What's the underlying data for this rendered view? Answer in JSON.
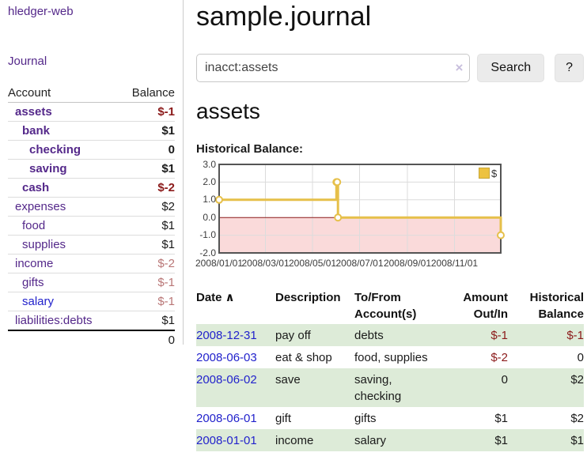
{
  "sidebar": {
    "brand": "hledger-web",
    "journal_link": "Journal",
    "accounts_table": {
      "headers": {
        "account": "Account",
        "balance": "Balance"
      },
      "rows": [
        {
          "name": "assets",
          "depth": 1,
          "bold": true,
          "balance": "$-1",
          "balance_style": "neg-strong"
        },
        {
          "name": "bank",
          "depth": 2,
          "bold": true,
          "balance": "$1",
          "balance_style": "pos"
        },
        {
          "name": "checking",
          "depth": 3,
          "bold": true,
          "balance": "0",
          "balance_style": "pos"
        },
        {
          "name": "saving",
          "depth": 3,
          "bold": true,
          "balance": "$1",
          "balance_style": "pos"
        },
        {
          "name": "cash",
          "depth": 2,
          "bold": true,
          "balance": "$-2",
          "balance_style": "neg-strong"
        },
        {
          "name": "expenses",
          "depth": 1,
          "bold": false,
          "balance": "$2",
          "balance_style": "pos"
        },
        {
          "name": "food",
          "depth": 2,
          "bold": false,
          "balance": "$1",
          "balance_style": "pos"
        },
        {
          "name": "supplies",
          "depth": 2,
          "bold": false,
          "balance": "$1",
          "balance_style": "pos"
        },
        {
          "name": "income",
          "depth": 1,
          "bold": false,
          "balance": "$-2",
          "balance_style": "neg-muted"
        },
        {
          "name": "gifts",
          "depth": 2,
          "bold": false,
          "balance": "$-1",
          "balance_style": "neg-muted"
        },
        {
          "name": "salary",
          "depth": 2,
          "bold": false,
          "link_style": "blue",
          "balance": "$-1",
          "balance_style": "neg-muted"
        },
        {
          "name": "liabilities:debts",
          "depth": 1,
          "bold": false,
          "balance": "$1",
          "balance_style": "pos"
        }
      ],
      "total": "0"
    }
  },
  "header": {
    "title": "sample.journal"
  },
  "search": {
    "value": "inacct:assets",
    "clear_icon": "×",
    "button_label": "Search",
    "help_label": "?"
  },
  "account_page": {
    "title": "assets",
    "chart_label": "Historical Balance:"
  },
  "chart_data": {
    "type": "line",
    "style": "step-after",
    "series": [
      {
        "name": "$",
        "points": [
          [
            "2008-01-01",
            1
          ],
          [
            "2008-06-01",
            2
          ],
          [
            "2008-06-02",
            2
          ],
          [
            "2008-06-03",
            0
          ],
          [
            "2008-12-31",
            -1
          ]
        ]
      }
    ],
    "x_range": [
      "2008-01-01",
      "2008-12-31"
    ],
    "x_ticks": [
      "2008/01/01",
      "2008/03/01",
      "2008/05/01",
      "2008/07/01",
      "2008/09/01",
      "2008/11/01"
    ],
    "y_ticks": [
      "3.0",
      "2.0",
      "1.0",
      "0.0",
      "-1.0",
      "-2.0"
    ],
    "ylim": [
      -2,
      3
    ],
    "grid": true,
    "legend_position": "top-right",
    "negative_region_shaded": true,
    "colors": {
      "line": "#e6c04a",
      "marker_fill": "#ffffff",
      "negative_region": "#fadada",
      "zero_line": "#8b1a1a",
      "grid": "#dcdcdc",
      "border": "#545454",
      "legend_swatch": "#edc240"
    }
  },
  "register_table": {
    "headers": {
      "date": "Date",
      "sort_asc_icon": "∧",
      "description": "Description",
      "accounts": "To/From Account(s)",
      "amount": "Amount Out/In",
      "balance": "Historical Balance"
    },
    "rows": [
      {
        "date": "2008-12-31",
        "description": "pay off",
        "accounts": "debts",
        "amount": "$-1",
        "amount_negative": true,
        "balance": "$-1",
        "balance_negative": true
      },
      {
        "date": "2008-06-03",
        "description": "eat & shop",
        "accounts": "food, supplies",
        "amount": "$-2",
        "amount_negative": true,
        "balance": "0",
        "balance_negative": false
      },
      {
        "date": "2008-06-02",
        "description": "save",
        "accounts": "saving, checking",
        "amount": "0",
        "amount_negative": false,
        "balance": "$2",
        "balance_negative": false
      },
      {
        "date": "2008-06-01",
        "description": "gift",
        "accounts": "gifts",
        "amount": "$1",
        "amount_negative": false,
        "balance": "$2",
        "balance_negative": false
      },
      {
        "date": "2008-01-01",
        "description": "income",
        "accounts": "salary",
        "amount": "$1",
        "amount_negative": false,
        "balance": "$1",
        "balance_negative": false
      }
    ]
  },
  "colors": {
    "link_purple": "#54288a",
    "link_blue": "#2222cc",
    "negative_strong": "#8b1a1a",
    "negative_muted": "#b97676",
    "row_stripe_green": "#ddebd8"
  }
}
